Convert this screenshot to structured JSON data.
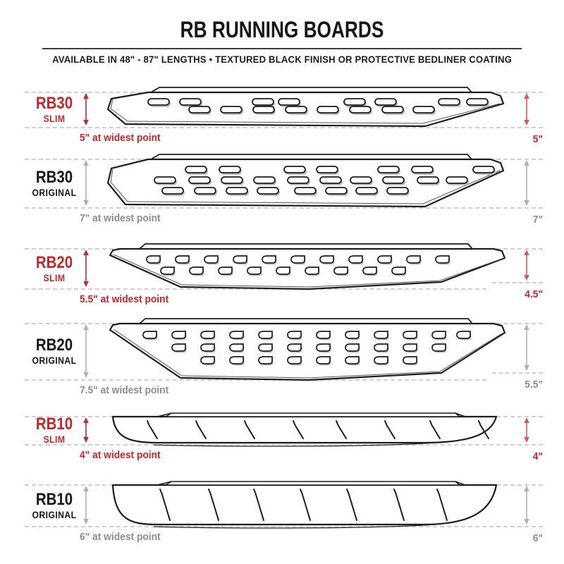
{
  "header": {
    "title": "RB RUNNING BOARDS",
    "subtitle": "AVAILABLE IN 48\" - 87\" LENGTHS   •   TEXTURED BLACK FINISH OR PROTECTIVE BEDLINER COATING"
  },
  "colors": {
    "slim_accent": "#c4262c",
    "slim_arrow_right": "#e25359",
    "original_label": "#161616",
    "original_text_gray": "#8d8d8d",
    "original_arrow_gray": "#b0b0b0",
    "outline": "#1d1d1d",
    "dash": "#cfcfcf"
  },
  "boards": [
    {
      "model": "RB30",
      "variant": "SLIM",
      "accent": "slim",
      "left_measure": "5\" at widest point",
      "right_measure": "5\""
    },
    {
      "model": "RB30",
      "variant": "ORIGINAL",
      "accent": "original",
      "left_measure": "7\" at widest point",
      "right_measure": "7\""
    },
    {
      "model": "RB20",
      "variant": "SLIM",
      "accent": "slim",
      "left_measure": "5.5\" at widest point",
      "right_measure": "4.5\""
    },
    {
      "model": "RB20",
      "variant": "ORIGINAL",
      "accent": "original",
      "left_measure": "7.5\" at widest point",
      "right_measure": "5.5\""
    },
    {
      "model": "RB10",
      "variant": "SLIM",
      "accent": "slim",
      "left_measure": "4\" at widest point",
      "right_measure": "4\""
    },
    {
      "model": "RB10",
      "variant": "ORIGINAL",
      "accent": "original",
      "left_measure": "6\" at widest point",
      "right_measure": "6\""
    }
  ]
}
